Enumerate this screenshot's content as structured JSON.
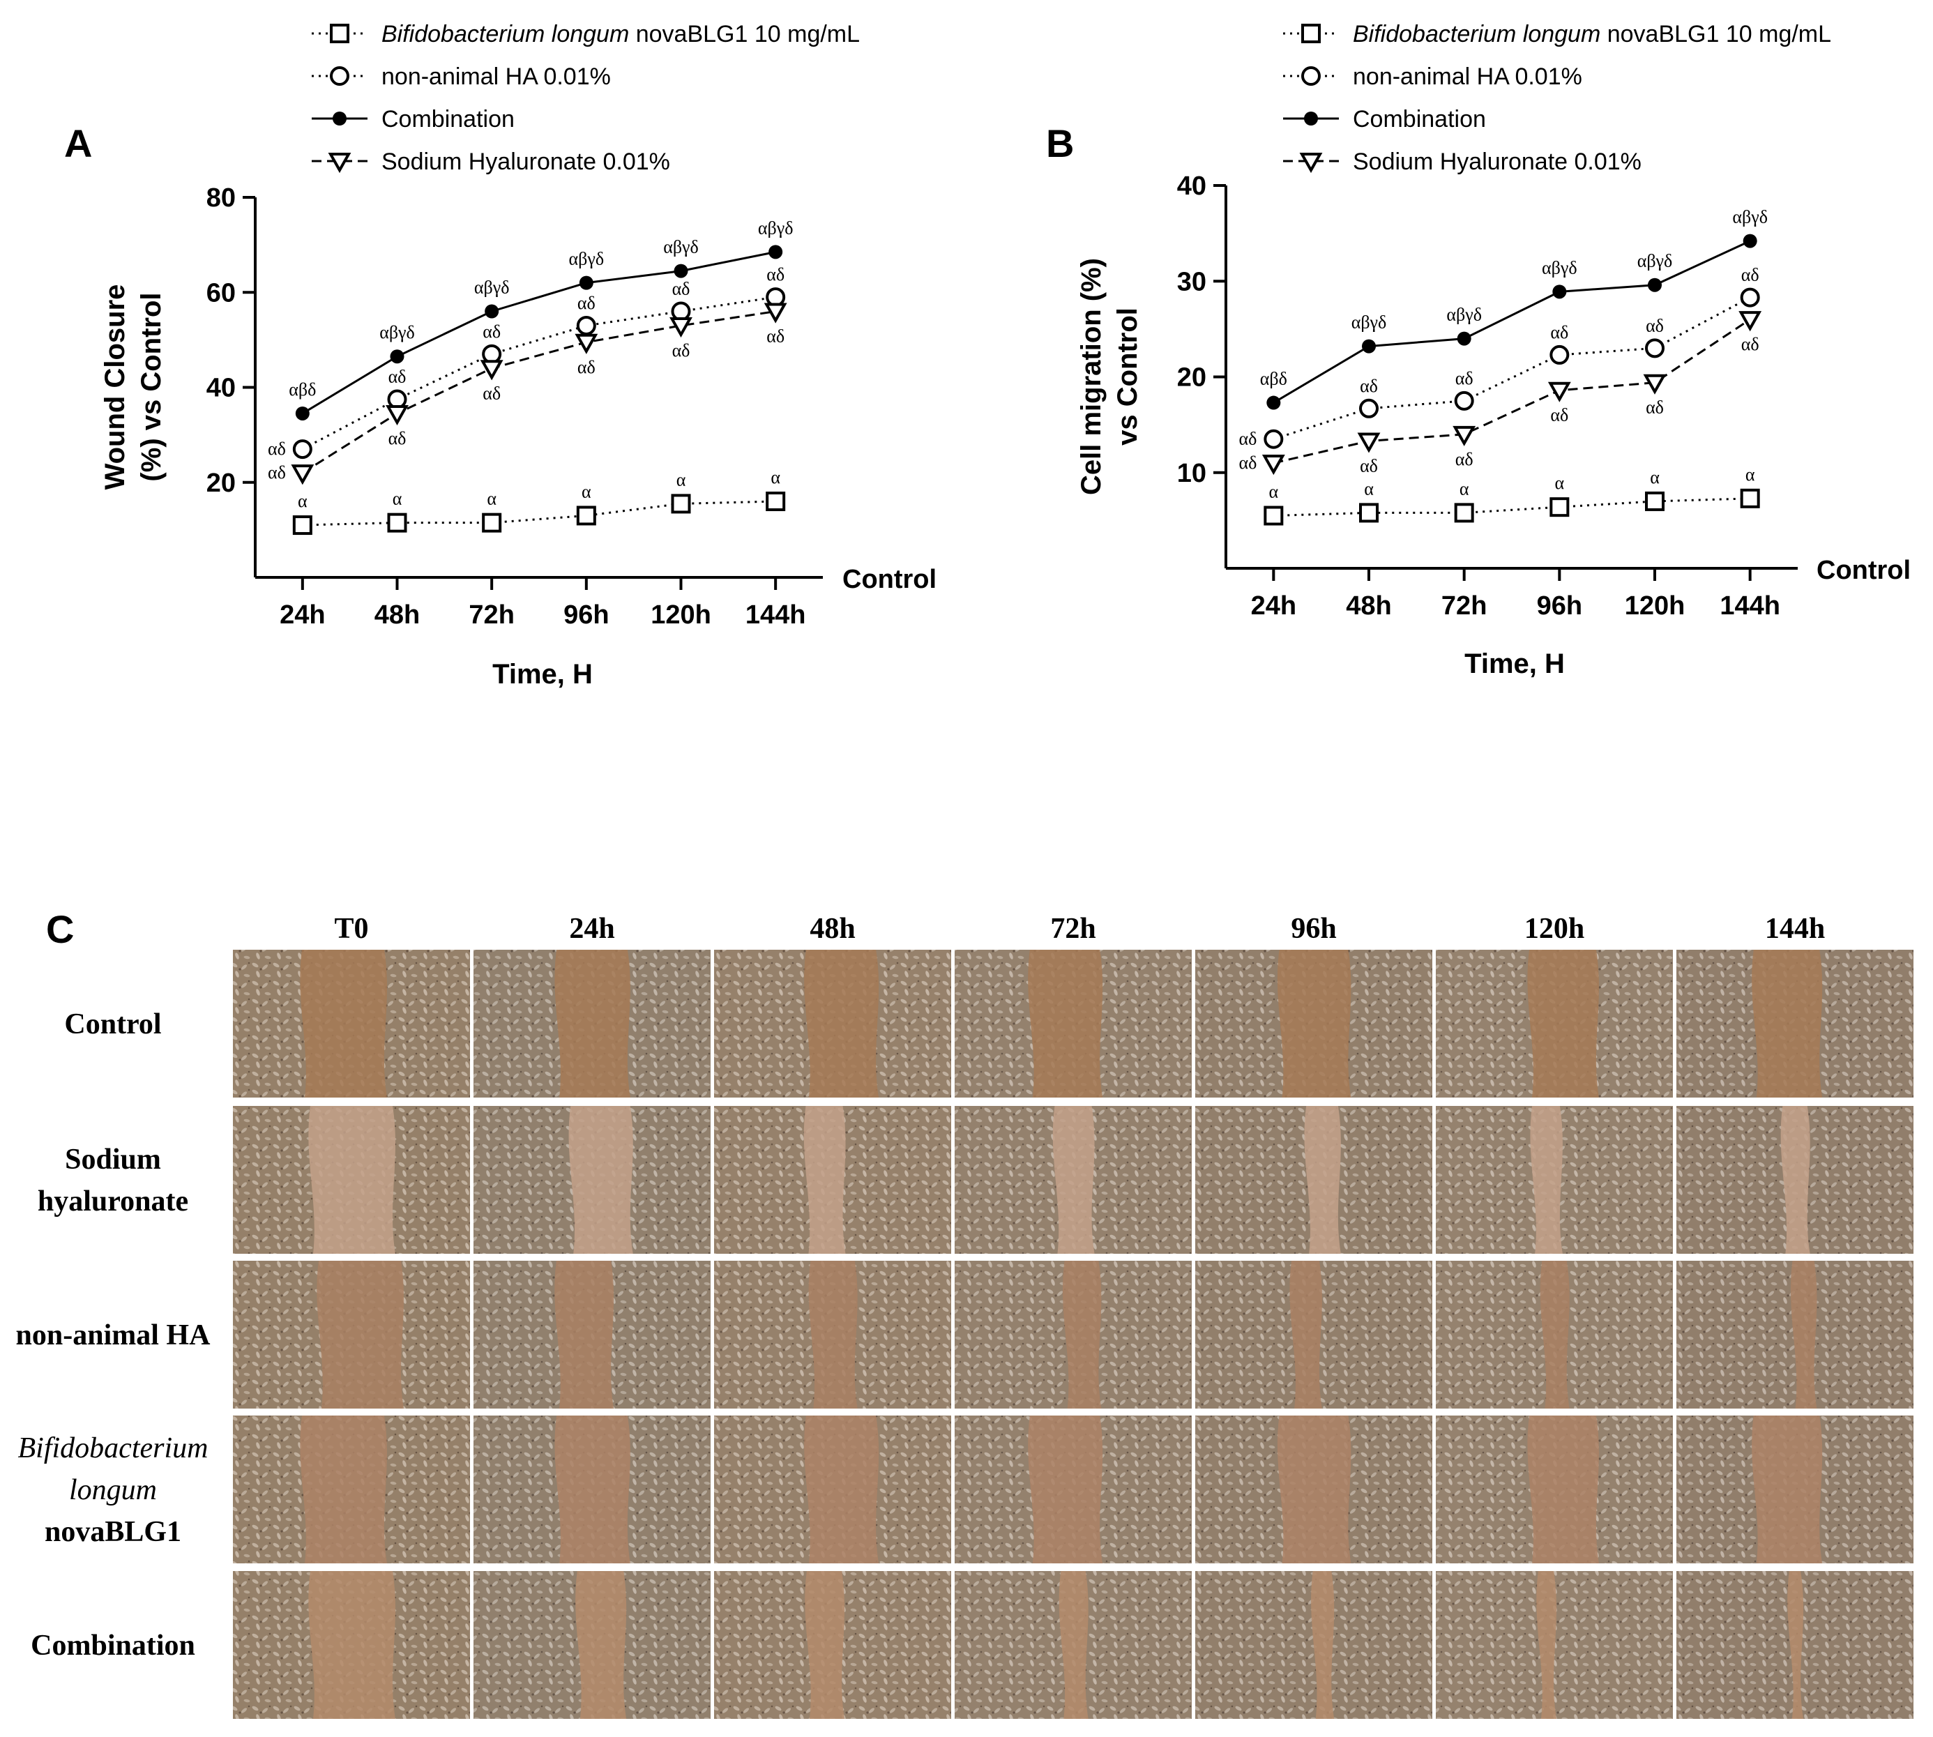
{
  "panel_c": {
    "label": "C",
    "columns": [
      "T0",
      "24h",
      "48h",
      "72h",
      "96h",
      "120h",
      "144h"
    ],
    "rows": [
      {
        "lines": [
          "Control"
        ],
        "italic": [
          false
        ]
      },
      {
        "lines": [
          "Sodium",
          "hyaluronate"
        ],
        "italic": [
          false,
          false
        ]
      },
      {
        "lines": [
          "non-animal HA"
        ],
        "italic": [
          false
        ]
      },
      {
        "lines": [
          "Bifidobacterium",
          "longum",
          "novaBLG1"
        ],
        "italic": [
          true,
          true,
          false
        ]
      },
      {
        "lines": [
          "Combination"
        ],
        "italic": [
          false
        ]
      }
    ],
    "gap_closure": [
      [
        0.0,
        0.0,
        0.0,
        0.0,
        0.0
      ],
      [
        0.11,
        0.22,
        0.27,
        0.11,
        0.35
      ],
      [
        0.12,
        0.44,
        0.37,
        0.12,
        0.46
      ],
      [
        0.12,
        0.44,
        0.47,
        0.12,
        0.56
      ],
      [
        0.13,
        0.49,
        0.53,
        0.13,
        0.62
      ],
      [
        0.15,
        0.53,
        0.56,
        0.15,
        0.65
      ],
      [
        0.16,
        0.56,
        0.59,
        0.16,
        0.69
      ]
    ]
  },
  "chart_data": [
    {
      "type": "line",
      "panel": "A",
      "title": "",
      "xlabel": "Time, H",
      "ylabel_lines": [
        "Wound Closure",
        "(%) vs Control"
      ],
      "baseline_label": "Control",
      "categories": [
        "24h",
        "48h",
        "72h",
        "96h",
        "120h",
        "144h"
      ],
      "ylim": [
        0,
        80
      ],
      "yticks": [
        20,
        40,
        60,
        80
      ],
      "legend": [
        {
          "name": "Bifidobacterium longum novaBLG1 10 mg/mL",
          "italic_part": "Bifidobacterium longum",
          "plain_part": " novaBLG1 10 mg/mL",
          "marker": "square",
          "line": "dotted"
        },
        {
          "name": "non-animal HA 0.01%",
          "marker": "circle",
          "line": "dotted"
        },
        {
          "name": "Combination",
          "marker": "filled-circle",
          "line": "solid"
        },
        {
          "name": "Sodium Hyaluronate 0.01%",
          "marker": "triangle-down",
          "line": "dashed"
        }
      ],
      "series": [
        {
          "name": "Bifidobacterium longum novaBLG1 10 mg/mL",
          "values": [
            11,
            11.5,
            11.5,
            13,
            15.5,
            16
          ],
          "annotations": [
            "α",
            "α",
            "α",
            "α",
            "α",
            "α"
          ]
        },
        {
          "name": "non-animal HA 0.01%",
          "values": [
            27,
            37.5,
            47,
            53,
            56,
            59
          ],
          "annotations": [
            "αδ",
            "αδ",
            "αδ",
            "αδ",
            "αδ",
            "αδ"
          ]
        },
        {
          "name": "Combination",
          "values": [
            34.5,
            46.5,
            56,
            62,
            64.5,
            68.5
          ],
          "annotations": [
            "αβδ",
            "αβγδ",
            "αβγδ",
            "αβγδ",
            "αβγδ",
            "αβγδ"
          ]
        },
        {
          "name": "Sodium Hyaluronate 0.01%",
          "values": [
            22,
            34.5,
            44,
            49.5,
            53,
            56
          ],
          "annotations": [
            "αδ",
            "αδ",
            "αδ",
            "αδ",
            "αδ",
            "αδ"
          ]
        }
      ]
    },
    {
      "type": "line",
      "panel": "B",
      "title": "",
      "xlabel": "Time, H",
      "ylabel_lines": [
        "Cell migration (%)",
        "vs Control"
      ],
      "baseline_label": "Control",
      "categories": [
        "24h",
        "48h",
        "72h",
        "96h",
        "120h",
        "144h"
      ],
      "ylim": [
        0,
        40
      ],
      "yticks": [
        10,
        20,
        30,
        40
      ],
      "legend": [
        {
          "name": "Bifidobacterium longum novaBLG1 10 mg/mL",
          "italic_part": "Bifidobacterium longum",
          "plain_part": " novaBLG1 10 mg/mL",
          "marker": "square",
          "line": "dotted"
        },
        {
          "name": "non-animal HA 0.01%",
          "marker": "circle",
          "line": "dotted"
        },
        {
          "name": "Combination",
          "marker": "filled-circle",
          "line": "solid"
        },
        {
          "name": "Sodium Hyaluronate 0.01%",
          "marker": "triangle-down",
          "line": "dashed"
        }
      ],
      "series": [
        {
          "name": "Bifidobacterium longum novaBLG1 10 mg/mL",
          "values": [
            5.5,
            5.8,
            5.8,
            6.4,
            7,
            7.3
          ],
          "annotations": [
            "α",
            "α",
            "α",
            "α",
            "α",
            "α"
          ]
        },
        {
          "name": "non-animal HA 0.01%",
          "values": [
            13.5,
            16.7,
            17.5,
            22.3,
            23,
            28.3
          ],
          "annotations": [
            "αδ",
            "αδ",
            "αδ",
            "αδ",
            "αδ",
            "αδ"
          ]
        },
        {
          "name": "Combination",
          "values": [
            17.3,
            23.2,
            24,
            28.9,
            29.6,
            34.2
          ],
          "annotations": [
            "αβδ",
            "αβγδ",
            "αβγδ",
            "αβγδ",
            "αβγδ",
            "αβγδ"
          ]
        },
        {
          "name": "Sodium Hyaluronate 0.01%",
          "values": [
            11,
            13.3,
            14,
            18.6,
            19.4,
            26
          ],
          "annotations": [
            "αδ",
            "αδ",
            "αδ",
            "αδ",
            "αδ",
            "αδ"
          ]
        }
      ]
    }
  ]
}
